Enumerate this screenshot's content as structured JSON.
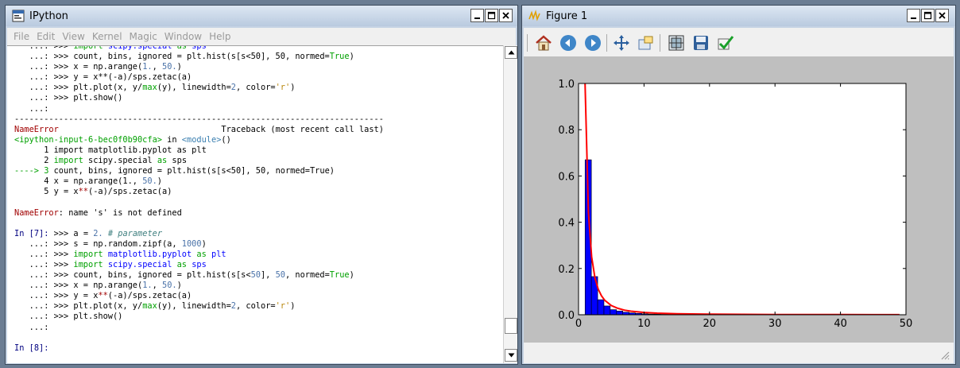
{
  "ipython": {
    "title": "IPython",
    "menu": [
      "File",
      "Edit",
      "View",
      "Kernel",
      "Magic",
      "Window",
      "Help"
    ],
    "lines": [
      [
        {
          "t": "   ...: >>> "
        },
        {
          "t": "import",
          "c": "c-green"
        },
        {
          "t": " "
        },
        {
          "t": "scipy.special",
          "c": "c-blue"
        },
        {
          "t": " "
        },
        {
          "t": "as",
          "c": "c-green"
        },
        {
          "t": " "
        },
        {
          "t": "sps",
          "c": "c-blue"
        }
      ],
      [
        {
          "t": "   ...: >>> count, bins, ignored = plt.hist(s[s<50], 50, normed="
        },
        {
          "t": "True",
          "c": "c-green"
        },
        {
          "t": ")"
        }
      ],
      [
        {
          "t": "   ...: >>> x = np.arange("
        },
        {
          "t": "1.",
          "c": "c-num"
        },
        {
          "t": ", "
        },
        {
          "t": "50.",
          "c": "c-num"
        },
        {
          "t": ")"
        }
      ],
      [
        {
          "t": "   ...: >>> y = x**(-a)/sps.zetac(a)"
        }
      ],
      [
        {
          "t": "   ...: >>> plt.plot(x, y/"
        },
        {
          "t": "max",
          "c": "c-green"
        },
        {
          "t": "(y), linewidth="
        },
        {
          "t": "2",
          "c": "c-num"
        },
        {
          "t": ", color="
        },
        {
          "t": "'r'",
          "c": "c-str"
        },
        {
          "t": ")"
        }
      ],
      [
        {
          "t": "   ...: >>> plt.show()"
        }
      ],
      [
        {
          "t": "   ...:"
        }
      ],
      [
        {
          "t": "---------------------------------------------------------------------------"
        }
      ],
      [
        {
          "t": "NameError",
          "c": "c-red"
        },
        {
          "t": "                                 Traceback (most recent call last)"
        }
      ],
      [
        {
          "t": "<ipython-input-6-bec0f0b90cfa>",
          "c": "c-green"
        },
        {
          "t": " in "
        },
        {
          "t": "<module>",
          "c": "c-mod"
        },
        {
          "t": "()"
        }
      ],
      [
        {
          "t": "      1 import matplotlib.pyplot as plt"
        }
      ],
      [
        {
          "t": "      2 "
        },
        {
          "t": "import",
          "c": "c-green"
        },
        {
          "t": " scipy.special "
        },
        {
          "t": "as",
          "c": "c-green"
        },
        {
          "t": " sps"
        }
      ],
      [
        {
          "t": "----> 3",
          "c": "c-green"
        },
        {
          "t": " count, bins, ignored = plt.hist(s[s<50], 50, normed=True)"
        }
      ],
      [
        {
          "t": "      4 x = np.arange(1., "
        },
        {
          "t": "50.",
          "c": "c-num"
        },
        {
          "t": ")"
        }
      ],
      [
        {
          "t": "      5 y = x"
        },
        {
          "t": "**",
          "c": "c-red"
        },
        {
          "t": "(-a)/sps.zetac(a)"
        }
      ],
      [
        {
          "t": ""
        }
      ],
      [
        {
          "t": "NameError",
          "c": "c-red"
        },
        {
          "t": ": name 's' is not defined"
        }
      ],
      [
        {
          "t": ""
        }
      ],
      [
        {
          "t": "In [",
          "c": "c-dblue"
        },
        {
          "t": "7",
          "c": "c-dblue"
        },
        {
          "t": "]: ",
          "c": "c-dblue"
        },
        {
          "t": ">>> a = "
        },
        {
          "t": "2.",
          "c": "c-num"
        },
        {
          "t": " "
        },
        {
          "t": "# parameter",
          "c": "c-cmt"
        }
      ],
      [
        {
          "t": "   ...: >>> s = np.random.zipf(a, "
        },
        {
          "t": "1000",
          "c": "c-num"
        },
        {
          "t": ")"
        }
      ],
      [
        {
          "t": "   ...: >>> "
        },
        {
          "t": "import",
          "c": "c-green"
        },
        {
          "t": " "
        },
        {
          "t": "matplotlib.pyplot",
          "c": "c-blue"
        },
        {
          "t": " "
        },
        {
          "t": "as",
          "c": "c-green"
        },
        {
          "t": " "
        },
        {
          "t": "plt",
          "c": "c-blue"
        }
      ],
      [
        {
          "t": "   ...: >>> "
        },
        {
          "t": "import",
          "c": "c-green"
        },
        {
          "t": " "
        },
        {
          "t": "scipy.special",
          "c": "c-blue"
        },
        {
          "t": " "
        },
        {
          "t": "as",
          "c": "c-green"
        },
        {
          "t": " "
        },
        {
          "t": "sps",
          "c": "c-blue"
        }
      ],
      [
        {
          "t": "   ...: >>> count, bins, ignored = plt.hist(s[s<"
        },
        {
          "t": "50",
          "c": "c-num"
        },
        {
          "t": "], "
        },
        {
          "t": "50",
          "c": "c-num"
        },
        {
          "t": ", normed="
        },
        {
          "t": "True",
          "c": "c-green"
        },
        {
          "t": ")"
        }
      ],
      [
        {
          "t": "   ...: >>> x = np.arange("
        },
        {
          "t": "1.",
          "c": "c-num"
        },
        {
          "t": ", "
        },
        {
          "t": "50.",
          "c": "c-num"
        },
        {
          "t": ")"
        }
      ],
      [
        {
          "t": "   ...: >>> y = x"
        },
        {
          "t": "**",
          "c": "c-red"
        },
        {
          "t": "(-a)/sps.zetac(a)"
        }
      ],
      [
        {
          "t": "   ...: >>> plt.plot(x, y/"
        },
        {
          "t": "max",
          "c": "c-green"
        },
        {
          "t": "(y), linewidth="
        },
        {
          "t": "2",
          "c": "c-num"
        },
        {
          "t": ", color="
        },
        {
          "t": "'r'",
          "c": "c-str"
        },
        {
          "t": ")"
        }
      ],
      [
        {
          "t": "   ...: >>> plt.show()"
        }
      ],
      [
        {
          "t": "   ...:"
        }
      ],
      [
        {
          "t": ""
        }
      ],
      [
        {
          "t": "In [",
          "c": "c-dblue"
        },
        {
          "t": "8",
          "c": "c-dblue"
        },
        {
          "t": "]:",
          "c": "c-dblue"
        }
      ]
    ]
  },
  "figure": {
    "title": "Figure 1",
    "toolbar": [
      "home-icon",
      "back-icon",
      "forward-icon",
      "pan-icon",
      "zoom-icon",
      "subplots-icon",
      "save-icon",
      "check-icon"
    ],
    "colors": {
      "bar": "#0000ff",
      "line": "#ff0000"
    }
  },
  "chart_data": {
    "type": "bar",
    "xlim": [
      0,
      50
    ],
    "ylim": [
      0,
      1.0
    ],
    "xticks": [
      0,
      10,
      20,
      30,
      40,
      50
    ],
    "yticks": [
      0.0,
      0.2,
      0.4,
      0.6,
      0.8,
      1.0
    ],
    "xtick_labels": [
      "0",
      "10",
      "20",
      "30",
      "40",
      "50"
    ],
    "ytick_labels": [
      "0.0",
      "0.2",
      "0.4",
      "0.6",
      "0.8",
      "1.0"
    ],
    "bars": [
      {
        "x0": 1.0,
        "x1": 1.96,
        "y": 0.67
      },
      {
        "x0": 1.96,
        "x1": 2.92,
        "y": 0.165
      },
      {
        "x0": 2.92,
        "x1": 3.88,
        "y": 0.065
      },
      {
        "x0": 3.88,
        "x1": 4.84,
        "y": 0.038
      },
      {
        "x0": 4.84,
        "x1": 5.8,
        "y": 0.022
      },
      {
        "x0": 5.8,
        "x1": 6.76,
        "y": 0.016
      },
      {
        "x0": 6.76,
        "x1": 7.72,
        "y": 0.011
      },
      {
        "x0": 7.72,
        "x1": 8.68,
        "y": 0.008
      },
      {
        "x0": 8.68,
        "x1": 9.64,
        "y": 0.006
      },
      {
        "x0": 9.64,
        "x1": 10.6,
        "y": 0.004
      },
      {
        "x0": 10.6,
        "x1": 11.56,
        "y": 0.003
      },
      {
        "x0": 11.56,
        "x1": 12.52,
        "y": 0.003
      },
      {
        "x0": 12.52,
        "x1": 13.48,
        "y": 0.002
      },
      {
        "x0": 13.48,
        "x1": 14.44,
        "y": 0.002
      },
      {
        "x0": 14.44,
        "x1": 15.4,
        "y": 0.002
      },
      {
        "x0": 16.36,
        "x1": 17.32,
        "y": 0.001
      },
      {
        "x0": 18.28,
        "x1": 19.24,
        "y": 0.001
      },
      {
        "x0": 21.16,
        "x1": 22.12,
        "y": 0.001
      },
      {
        "x0": 24.04,
        "x1": 25.0,
        "y": 0.001
      },
      {
        "x0": 28.84,
        "x1": 29.8,
        "y": 0.001
      },
      {
        "x0": 33.64,
        "x1": 34.6,
        "y": 0.001
      },
      {
        "x0": 39.4,
        "x1": 40.36,
        "y": 0.001
      },
      {
        "x0": 45.16,
        "x1": 46.12,
        "y": 0.001
      }
    ],
    "curve": {
      "x": [
        1,
        1.5,
        2,
        2.5,
        3,
        3.5,
        4,
        5,
        6,
        7,
        8,
        10,
        12,
        15,
        20,
        25,
        30,
        35,
        40,
        45,
        49
      ],
      "y": [
        1.0,
        0.444,
        0.25,
        0.16,
        0.111,
        0.082,
        0.0625,
        0.04,
        0.028,
        0.02,
        0.0156,
        0.01,
        0.0069,
        0.0044,
        0.0025,
        0.0016,
        0.0011,
        0.0008,
        0.0006,
        0.0005,
        0.0004
      ]
    }
  }
}
